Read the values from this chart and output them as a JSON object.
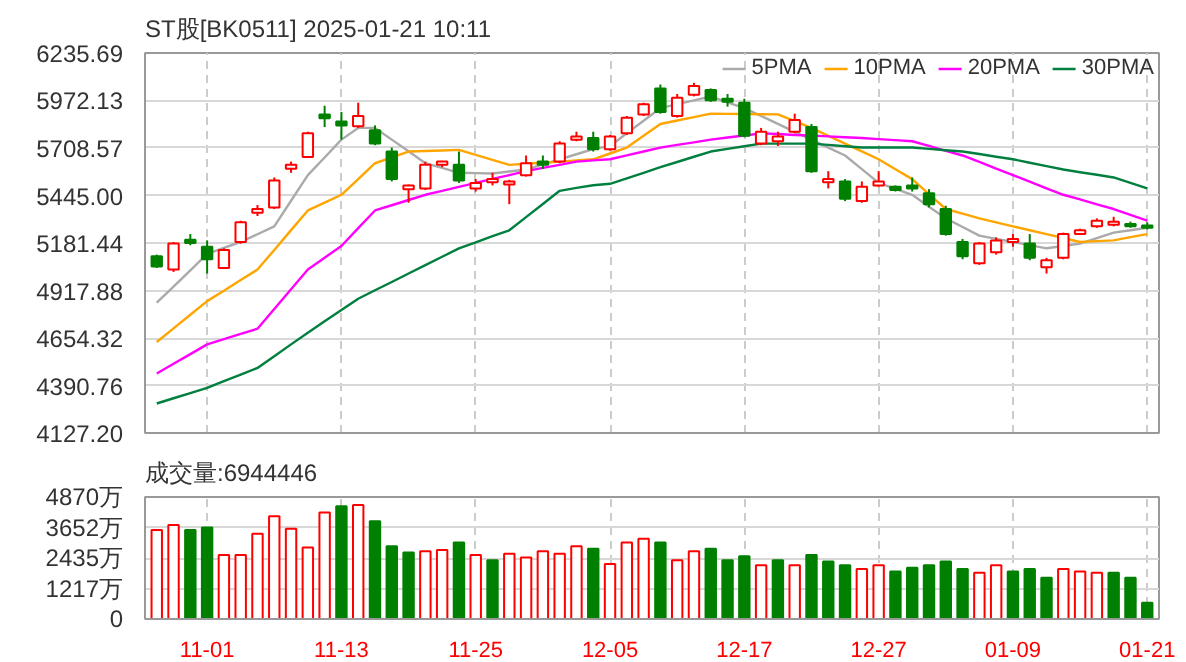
{
  "chart_data": [
    {
      "type": "candlestick",
      "title": "ST股[BK0511] 2025-01-21 10:11",
      "tick_labels": "y",
      "grid": true,
      "legend": "top right",
      "categories": [
        null,
        null,
        null,
        null,
        null,
        null,
        null,
        null,
        null,
        null,
        null,
        null,
        null,
        null,
        null,
        null,
        null,
        null,
        null,
        null,
        null,
        null,
        null,
        null,
        null,
        null,
        null,
        null,
        null,
        null,
        null,
        null,
        null,
        null,
        null,
        null,
        null,
        null,
        null,
        null,
        null,
        null,
        null,
        null,
        null,
        null,
        null,
        null,
        null,
        null,
        null,
        null,
        null,
        null,
        null,
        null,
        null,
        null,
        null,
        null
      ],
      "ylim": [
        4127.2,
        6235.69
      ],
      "yticks": [
        {
          "value": 4127.2,
          "label": "4127.20"
        },
        {
          "value": 4390.76,
          "label": "4390.76"
        },
        {
          "value": 4654.32,
          "label": "4654.32"
        },
        {
          "value": 4917.88,
          "label": "4917.88"
        },
        {
          "value": 5181.44,
          "label": "5181.44"
        },
        {
          "value": 5445.0,
          "label": "5445.00"
        },
        {
          "value": 5708.57,
          "label": "5708.57"
        },
        {
          "value": 5972.13,
          "label": "5972.13"
        },
        {
          "value": 6235.69,
          "label": "6235.69"
        }
      ],
      "ohlc": [
        [
          5108,
          5117,
          5043,
          5051
        ],
        [
          5034,
          5187,
          5021,
          5178
        ],
        [
          5200,
          5231,
          5169,
          5182
        ],
        [
          5161,
          5196,
          5012,
          5091
        ],
        [
          5043,
          5152,
          5038,
          5143
        ],
        [
          5187,
          5305,
          5178,
          5296
        ],
        [
          5349,
          5392,
          5331,
          5370
        ],
        [
          5379,
          5545,
          5370,
          5528
        ],
        [
          5593,
          5633,
          5571,
          5615
        ],
        [
          5659,
          5799,
          5654,
          5790
        ],
        [
          5895,
          5943,
          5825,
          5873
        ],
        [
          5855,
          5908,
          5755,
          5834
        ],
        [
          5829,
          5960,
          5820,
          5886
        ],
        [
          5807,
          5834,
          5724,
          5733
        ],
        [
          5689,
          5711,
          5523,
          5536
        ],
        [
          5480,
          5506,
          5405,
          5501
        ],
        [
          5484,
          5633,
          5475,
          5615
        ],
        [
          5615,
          5637,
          5602,
          5633
        ],
        [
          5615,
          5689,
          5515,
          5528
        ],
        [
          5484,
          5536,
          5467,
          5515
        ],
        [
          5519,
          5571,
          5501,
          5536
        ],
        [
          5506,
          5532,
          5397,
          5523
        ],
        [
          5558,
          5667,
          5550,
          5624
        ],
        [
          5633,
          5667,
          5593,
          5615
        ],
        [
          5633,
          5746,
          5624,
          5733
        ],
        [
          5755,
          5799,
          5746,
          5772
        ],
        [
          5764,
          5799,
          5689,
          5702
        ],
        [
          5702,
          5781,
          5694,
          5772
        ],
        [
          5790,
          5886,
          5781,
          5877
        ],
        [
          5895,
          5960,
          5886,
          5952
        ],
        [
          6039,
          6061,
          5899,
          5908
        ],
        [
          5886,
          6008,
          5877,
          5987
        ],
        [
          6004,
          6070,
          5995,
          6052
        ],
        [
          6030,
          6039,
          5965,
          5973
        ],
        [
          5982,
          6008,
          5938,
          5965
        ],
        [
          5960,
          5982,
          5768,
          5777
        ],
        [
          5733,
          5820,
          5724,
          5799
        ],
        [
          5746,
          5799,
          5720,
          5772
        ],
        [
          5799,
          5899,
          5790,
          5864
        ],
        [
          5825,
          5842,
          5571,
          5580
        ],
        [
          5519,
          5580,
          5484,
          5536
        ],
        [
          5523,
          5536,
          5414,
          5427
        ],
        [
          5414,
          5523,
          5405,
          5493
        ],
        [
          5501,
          5580,
          5493,
          5523
        ],
        [
          5493,
          5501,
          5467,
          5475
        ],
        [
          5501,
          5545,
          5467,
          5484
        ],
        [
          5458,
          5480,
          5379,
          5397
        ],
        [
          5370,
          5388,
          5222,
          5231
        ],
        [
          5187,
          5204,
          5091,
          5108
        ],
        [
          5069,
          5187,
          5060,
          5178
        ],
        [
          5130,
          5213,
          5117,
          5196
        ],
        [
          5187,
          5231,
          5161,
          5204
        ],
        [
          5178,
          5231,
          5086,
          5099
        ],
        [
          5047,
          5099,
          5012,
          5086
        ],
        [
          5099,
          5239,
          5091,
          5231
        ],
        [
          5231,
          5261,
          5226,
          5252
        ],
        [
          5274,
          5318,
          5266,
          5305
        ],
        [
          5283,
          5327,
          5274,
          5300
        ],
        [
          5287,
          5300,
          5266,
          5274
        ],
        [
          5279,
          5296,
          5257,
          5266
        ]
      ],
      "colors": [
        "#008000",
        "#ff0000",
        "#008000",
        "#008000",
        "#ff0000",
        "#ff0000",
        "#ff0000",
        "#ff0000",
        "#ff0000",
        "#ff0000",
        "#008000",
        "#008000",
        "#ff0000",
        "#008000",
        "#008000",
        "#ff0000",
        "#ff0000",
        "#ff0000",
        "#008000",
        "#ff0000",
        "#ff0000",
        "#ff0000",
        "#ff0000",
        "#008000",
        "#ff0000",
        "#ff0000",
        "#008000",
        "#ff0000",
        "#ff0000",
        "#ff0000",
        "#008000",
        "#ff0000",
        "#ff0000",
        "#008000",
        "#008000",
        "#008000",
        "#ff0000",
        "#ff0000",
        "#ff0000",
        "#008000",
        "#ff0000",
        "#008000",
        "#ff0000",
        "#ff0000",
        "#008000",
        "#008000",
        "#008000",
        "#008000",
        "#008000",
        "#ff0000",
        "#ff0000",
        "#ff0000",
        "#008000",
        "#ff0000",
        "#ff0000",
        "#ff0000",
        "#ff0000",
        "#ff0000",
        "#008000",
        "#008000"
      ],
      "series": [
        {
          "name": "5PMA",
          "type": "line",
          "color": "#aaaaaa",
          "values": [
            4850,
            4940,
            5030,
            5121,
            5154,
            5187,
            5230,
            5274,
            5416,
            5558,
            5656,
            5755,
            5820,
            5820,
            5755,
            5690,
            5624,
            5598,
            5571,
            5569,
            5567,
            5578,
            5589,
            5618,
            5646,
            5674,
            5702,
            5720,
            5790,
            5860,
            5930,
            5952,
            5973,
            5995,
            5962,
            5930,
            5886,
            5842,
            5798,
            5755,
            5711,
            5667,
            5591,
            5515,
            5482,
            5449,
            5383,
            5318,
            5270,
            5222,
            5204,
            5187,
            5170,
            5152,
            5165,
            5178,
            5208,
            5239,
            5252,
            5266
          ]
        },
        {
          "name": "10PMA",
          "type": "line",
          "color": "#ffa500",
          "values": [
            4632,
            4708,
            4783,
            4859,
            4917,
            4976,
            5034,
            5143,
            5253,
            5362,
            5405,
            5449,
            5536,
            5624,
            5656,
            5689,
            5692,
            5695,
            5698,
            5670,
            5643,
            5615,
            5621,
            5627,
            5633,
            5640,
            5646,
            5678,
            5711,
            5776,
            5842,
            5861,
            5880,
            5899,
            5898,
            5897,
            5896,
            5895,
            5858,
            5820,
            5776,
            5733,
            5690,
            5646,
            5591,
            5536,
            5453,
            5370,
            5344,
            5318,
            5296,
            5274,
            5252,
            5231,
            5209,
            5187,
            5192,
            5196,
            5214,
            5231
          ]
        },
        {
          "name": "20PMA",
          "type": "line",
          "color": "#ff00ff",
          "values": [
            4457,
            4511,
            4565,
            4619,
            4648,
            4677,
            4706,
            4815,
            4925,
            5034,
            5100,
            5165,
            5264,
            5362,
            5391,
            5420,
            5449,
            5471,
            5493,
            5515,
            5537,
            5558,
            5580,
            5598,
            5615,
            5633,
            5640,
            5646,
            5668,
            5689,
            5711,
            5726,
            5740,
            5755,
            5767,
            5778,
            5790,
            5786,
            5781,
            5777,
            5773,
            5768,
            5764,
            5758,
            5752,
            5746,
            5720,
            5693,
            5667,
            5631,
            5594,
            5558,
            5522,
            5485,
            5449,
            5423,
            5396,
            5370,
            5338,
            5305
          ]
        },
        {
          "name": "30PMA",
          "type": "line",
          "color": "#007f3f",
          "values": [
            4291,
            4320,
            4349,
            4378,
            4415,
            4451,
            4488,
            4553,
            4619,
            4684,
            4747,
            4809,
            4872,
            4919,
            4965,
            5012,
            5059,
            5105,
            5152,
            5185,
            5219,
            5252,
            5325,
            5398,
            5471,
            5487,
            5502,
            5510,
            5540,
            5571,
            5602,
            5631,
            5660,
            5689,
            5704,
            5718,
            5733,
            5733,
            5733,
            5733,
            5726,
            5718,
            5711,
            5711,
            5711,
            5711,
            5704,
            5696,
            5689,
            5675,
            5660,
            5646,
            5627,
            5608,
            5589,
            5574,
            5560,
            5545,
            5515,
            5484
          ]
        }
      ]
    },
    {
      "type": "bar",
      "title": "成交量:6944446",
      "grid": true,
      "categories": [
        null,
        null,
        null,
        "11-01",
        null,
        null,
        null,
        null,
        null,
        null,
        null,
        "11-13",
        null,
        null,
        null,
        null,
        null,
        null,
        null,
        "11-25",
        null,
        null,
        null,
        null,
        null,
        null,
        null,
        "12-05",
        null,
        null,
        null,
        null,
        null,
        null,
        null,
        "12-17",
        null,
        null,
        null,
        null,
        null,
        null,
        null,
        "12-27",
        null,
        null,
        null,
        null,
        null,
        null,
        null,
        "01-09",
        null,
        null,
        null,
        null,
        null,
        null,
        null,
        "01-21"
      ],
      "ylim": [
        0,
        4870
      ],
      "yticks": [
        0,
        {
          "value": 1217.5,
          "label": "1217万"
        },
        {
          "value": 2435,
          "label": "2435万"
        },
        {
          "value": 3652.5,
          "label": "3652万"
        },
        {
          "value": 4870,
          "label": "4870万"
        }
      ],
      "values": [
        3550,
        3750,
        3550,
        3650,
        2550,
        2550,
        3400,
        4100,
        3600,
        2850,
        4250,
        4500,
        4550,
        3900,
        2900,
        2650,
        2700,
        2750,
        3050,
        2550,
        2350,
        2600,
        2450,
        2700,
        2600,
        2900,
        2800,
        2200,
        3050,
        3200,
        3050,
        2350,
        2700,
        2800,
        2350,
        2500,
        2150,
        2350,
        2150,
        2550,
        2300,
        2150,
        2000,
        2150,
        1900,
        2050,
        2150,
        2300,
        2000,
        1850,
        2150,
        1900,
        2000,
        1650,
        2000,
        1900,
        1850,
        1850,
        1650,
        650
      ],
      "colors": [
        "#ff0000",
        "#ff0000",
        "#008000",
        "#008000",
        "#ff0000",
        "#ff0000",
        "#ff0000",
        "#ff0000",
        "#ff0000",
        "#ff0000",
        "#ff0000",
        "#008000",
        "#ff0000",
        "#008000",
        "#008000",
        "#008000",
        "#ff0000",
        "#ff0000",
        "#008000",
        "#ff0000",
        "#008000",
        "#ff0000",
        "#ff0000",
        "#ff0000",
        "#ff0000",
        "#ff0000",
        "#008000",
        "#ff0000",
        "#ff0000",
        "#ff0000",
        "#008000",
        "#ff0000",
        "#ff0000",
        "#008000",
        "#008000",
        "#008000",
        "#ff0000",
        "#008000",
        "#ff0000",
        "#008000",
        "#008000",
        "#008000",
        "#ff0000",
        "#ff0000",
        "#008000",
        "#008000",
        "#008000",
        "#008000",
        "#008000",
        "#ff0000",
        "#ff0000",
        "#008000",
        "#008000",
        "#008000",
        "#ff0000",
        "#ff0000",
        "#ff0000",
        "#008000",
        "#008000",
        "#008000"
      ]
    }
  ]
}
